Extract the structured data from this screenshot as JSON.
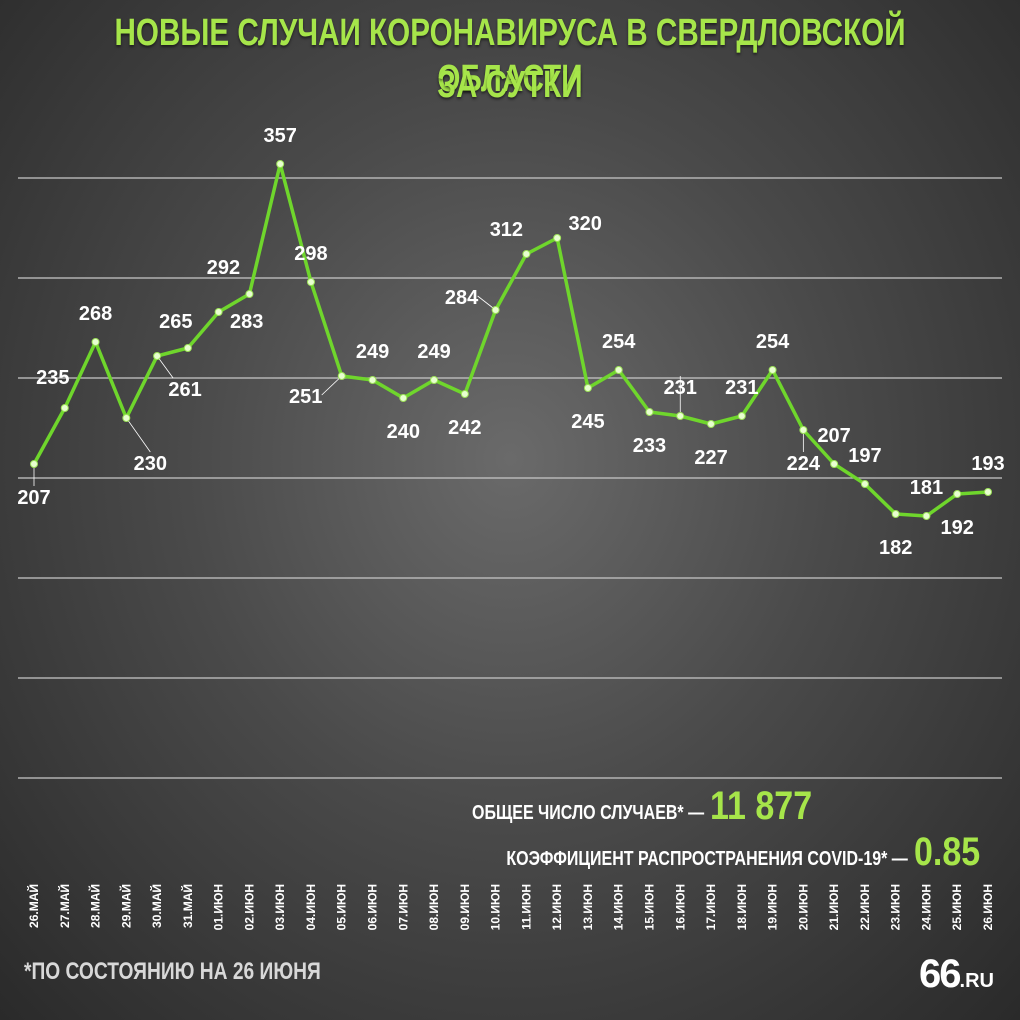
{
  "title_line1": "НОВЫЕ СЛУЧАИ КОРОНАВИРУСА В СВЕРДЛОВСКОЙ ОБЛАСТИ",
  "title_line2": "ЗА СУТКИ",
  "chart_data": {
    "type": "line",
    "title": "НОВЫЕ СЛУЧАИ КОРОНАВИРУСА В СВЕРДЛОВСКОЙ ОБЛАСТИ ЗА СУТКИ",
    "categories": [
      "26.МАЙ",
      "27.МАЙ",
      "28.МАЙ",
      "29.МАЙ",
      "30.МАЙ",
      "31.МАЙ",
      "01.ИЮН",
      "02.ИЮН",
      "03.ИЮН",
      "04.ИЮН",
      "05.ИЮН",
      "06.ИЮН",
      "07.ИЮН",
      "08.ИЮН",
      "09.ИЮН",
      "10.ИЮН",
      "11.ИЮН",
      "12.ИЮН",
      "13.ИЮН",
      "14.ИЮН",
      "15.ИЮН",
      "16.ИЮН",
      "17.ИЮН",
      "18.ИЮН",
      "19.ИЮН",
      "20.ИЮН",
      "21.ИЮН",
      "22.ИЮН",
      "23.ИЮН",
      "24.ИЮН",
      "25.ИЮН",
      "26.ИЮН"
    ],
    "values": [
      207,
      235,
      268,
      230,
      261,
      265,
      283,
      292,
      357,
      298,
      251,
      249,
      240,
      249,
      242,
      284,
      312,
      320,
      245,
      254,
      233,
      231,
      227,
      231,
      254,
      224,
      207,
      197,
      182,
      181,
      192,
      193
    ],
    "ylim": [
      0,
      400
    ],
    "grid": true,
    "line_color": "#6fd62c",
    "marker_color": "#e8ffd0"
  },
  "summary": {
    "total_label": "ОБЩЕЕ ЧИСЛО СЛУЧАЕВ* —",
    "total_value": "11 877",
    "coef_label": "КОЭФФИЦИЕНТ РАСПРОСТРАНЕНИЯ COVID-19* —",
    "coef_value": "0.85"
  },
  "footnote": "*ПО СОСТОЯНИЮ НА 26 ИЮНЯ",
  "logo": {
    "number": "66",
    "domain": ".RU"
  },
  "colors": {
    "accent": "#a6e54a",
    "text": "#ffffff"
  }
}
